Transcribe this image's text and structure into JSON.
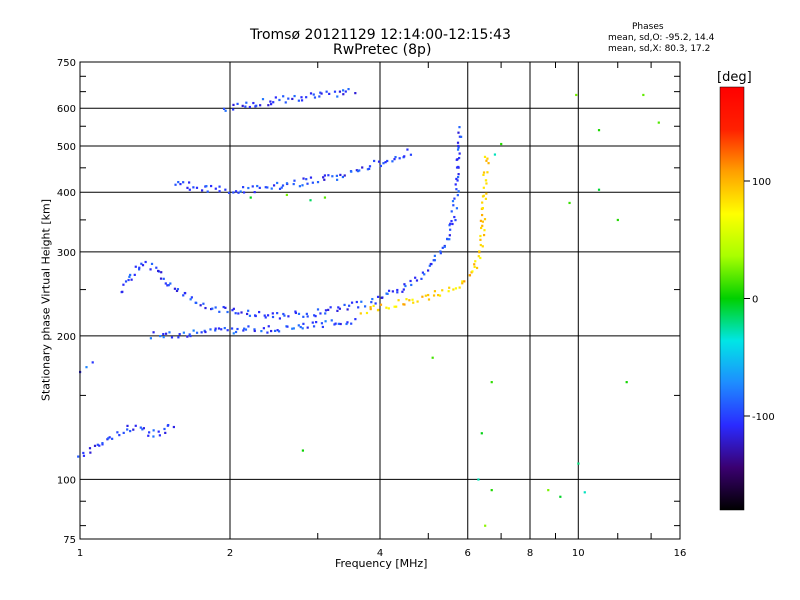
{
  "chart_data": {
    "type": "scatter",
    "title": "Tromsø 20121129 12:14:00-12:15:43",
    "subtitle": "RwPretec (8p)",
    "xlabel": "Frequency [MHz]",
    "ylabel": "Stationary phase Virtual Height [km]",
    "x_scale": "log",
    "y_scale": "log",
    "xlim": [
      1,
      16
    ],
    "ylim": [
      75,
      750
    ],
    "x_ticks": [
      "1",
      "2",
      "4",
      "6",
      "8",
      "10",
      "16"
    ],
    "y_ticks": [
      "75",
      "100",
      "200",
      "300",
      "400",
      "500",
      "600",
      "750"
    ],
    "grid": true,
    "stats": {
      "heading": "Phases",
      "o_mode": "mean, sd,O: -95.2, 14.4",
      "x_mode": "mean, sd,X:  80.3, 17.2"
    },
    "colorbar": {
      "unit": "[deg]",
      "ticks": [
        "100",
        "0",
        "-100"
      ],
      "range": [
        -180,
        180
      ],
      "colors": [
        "#000000",
        "#3a0070",
        "#2a2aff",
        "#1e8cff",
        "#00e6e6",
        "#00d000",
        "#a8ff00",
        "#ffff00",
        "#ffa000",
        "#ff2000",
        "#ff0000"
      ]
    },
    "series": [
      {
        "points": [
          [
            1.4,
            200
          ],
          [
            1.5,
            201
          ],
          [
            1.6,
            202
          ],
          [
            1.7,
            203
          ],
          [
            1.8,
            204
          ],
          [
            2.0,
            205
          ],
          [
            2.2,
            206
          ],
          [
            2.5,
            207
          ],
          [
            2.8,
            209
          ],
          [
            3.0,
            211
          ],
          [
            3.3,
            213
          ],
          [
            3.6,
            216
          ]
        ],
        "phase": -95
      },
      {
        "points": [
          [
            1.2,
            248
          ],
          [
            1.25,
            262
          ],
          [
            1.3,
            275
          ],
          [
            1.35,
            285
          ],
          [
            1.4,
            280
          ],
          [
            1.45,
            268
          ],
          [
            1.5,
            258
          ],
          [
            1.6,
            245
          ],
          [
            1.7,
            238
          ],
          [
            1.8,
            232
          ],
          [
            1.9,
            228
          ],
          [
            2.0,
            225
          ],
          [
            2.2,
            222
          ],
          [
            2.4,
            221
          ],
          [
            2.6,
            221
          ],
          [
            2.8,
            222
          ],
          [
            3.0,
            224
          ],
          [
            3.2,
            226
          ],
          [
            3.4,
            229
          ],
          [
            3.6,
            232
          ],
          [
            3.8,
            235
          ],
          [
            4.0,
            240
          ],
          [
            4.3,
            248
          ],
          [
            4.6,
            258
          ],
          [
            4.9,
            272
          ],
          [
            5.2,
            292
          ],
          [
            5.4,
            315
          ],
          [
            5.6,
            350
          ],
          [
            5.7,
            400
          ],
          [
            5.75,
            450
          ],
          [
            5.8,
            550
          ]
        ],
        "phase": -100
      },
      {
        "points": [
          [
            3.7,
            225
          ],
          [
            4.0,
            229
          ],
          [
            4.3,
            233
          ],
          [
            4.7,
            238
          ],
          [
            5.1,
            243
          ],
          [
            5.5,
            250
          ],
          [
            5.8,
            257
          ],
          [
            6.0,
            264
          ],
          [
            6.2,
            275
          ],
          [
            6.3,
            290
          ],
          [
            6.4,
            320
          ],
          [
            6.45,
            360
          ],
          [
            6.5,
            410
          ],
          [
            6.55,
            480
          ]
        ],
        "phase": 90
      },
      {
        "points": [
          [
            1.55,
            420
          ],
          [
            1.7,
            410
          ],
          [
            1.9,
            405
          ],
          [
            2.1,
            405
          ],
          [
            2.4,
            410
          ],
          [
            2.7,
            418
          ],
          [
            3.0,
            425
          ],
          [
            3.3,
            433
          ],
          [
            3.6,
            445
          ],
          [
            3.9,
            458
          ],
          [
            4.2,
            470
          ],
          [
            4.5,
            482
          ],
          [
            4.7,
            490
          ]
        ],
        "phase": -100
      },
      {
        "points": [
          [
            1.95,
            600
          ],
          [
            2.1,
            610
          ],
          [
            2.4,
            620
          ],
          [
            2.7,
            630
          ],
          [
            3.0,
            638
          ],
          [
            3.3,
            645
          ],
          [
            3.6,
            650
          ]
        ],
        "phase": -100
      },
      {
        "points": [
          [
            1.0,
            112
          ],
          [
            1.05,
            115
          ],
          [
            1.1,
            118
          ],
          [
            1.15,
            122
          ],
          [
            1.2,
            125
          ],
          [
            1.25,
            128
          ],
          [
            1.3,
            128
          ],
          [
            1.35,
            126
          ],
          [
            1.4,
            125
          ],
          [
            1.45,
            126
          ],
          [
            1.5,
            128
          ],
          [
            1.55,
            130
          ]
        ],
        "phase": -100
      },
      {
        "points": [
          [
            1.0,
            168
          ],
          [
            1.03,
            172
          ],
          [
            1.06,
            176
          ]
        ],
        "phase": -100
      },
      {
        "points": [
          [
            6.3,
            100
          ],
          [
            7.0,
            505
          ],
          [
            9.9,
            640
          ],
          [
            10.0,
            108
          ],
          [
            11.0,
            540
          ],
          [
            12.0,
            350
          ],
          [
            12.5,
            160
          ],
          [
            13.5,
            640
          ],
          [
            14.5,
            560
          ],
          [
            6.8,
            480
          ],
          [
            5.1,
            180
          ],
          [
            6.7,
            160
          ],
          [
            6.4,
            125
          ],
          [
            6.7,
            95
          ],
          [
            6.5,
            80
          ],
          [
            2.2,
            390
          ],
          [
            2.6,
            395
          ],
          [
            2.9,
            385
          ],
          [
            3.1,
            390
          ],
          [
            8.7,
            95
          ],
          [
            9.2,
            92
          ],
          [
            10.3,
            94
          ],
          [
            2.8,
            115
          ],
          [
            11.0,
            405
          ],
          [
            9.6,
            380
          ]
        ],
        "phase": 0
      }
    ]
  }
}
